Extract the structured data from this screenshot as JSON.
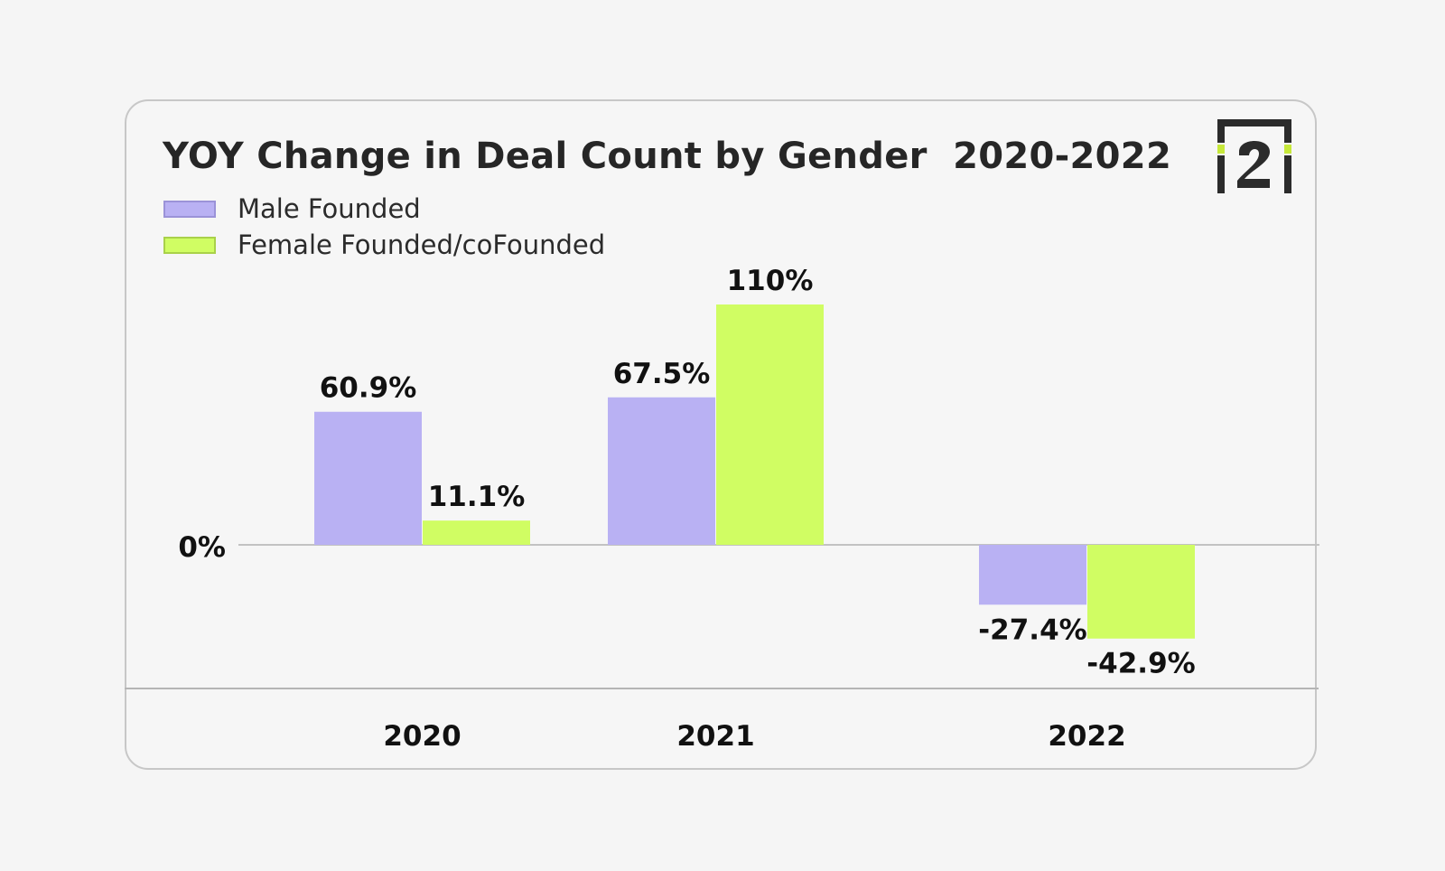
{
  "logo": {
    "text": "i2",
    "frame_color": "#2b2b2b",
    "accent_color": "#c6e83a"
  },
  "chart_data": {
    "type": "bar",
    "title": "YOY Change in Deal Count by Gender  2020-2022",
    "xlabel": "",
    "ylabel": "",
    "categories": [
      "2020",
      "2021",
      "2022"
    ],
    "zero_label": "0%",
    "legend_position": "top-left",
    "grid": false,
    "series": [
      {
        "name": "Male Founded",
        "values": [
          60.9,
          67.5,
          -27.4
        ],
        "labels": [
          "60.9%",
          "67.5%",
          "-27.4%"
        ],
        "color": "#b9b1f3",
        "border": "#9b93d8"
      },
      {
        "name": "Female Founded/coFounded",
        "values": [
          11.1,
          110,
          -42.9
        ],
        "labels": [
          "11.1%",
          "110%",
          "-42.9%"
        ],
        "color": "#d0fd63",
        "border": "#a9d14a"
      }
    ]
  }
}
